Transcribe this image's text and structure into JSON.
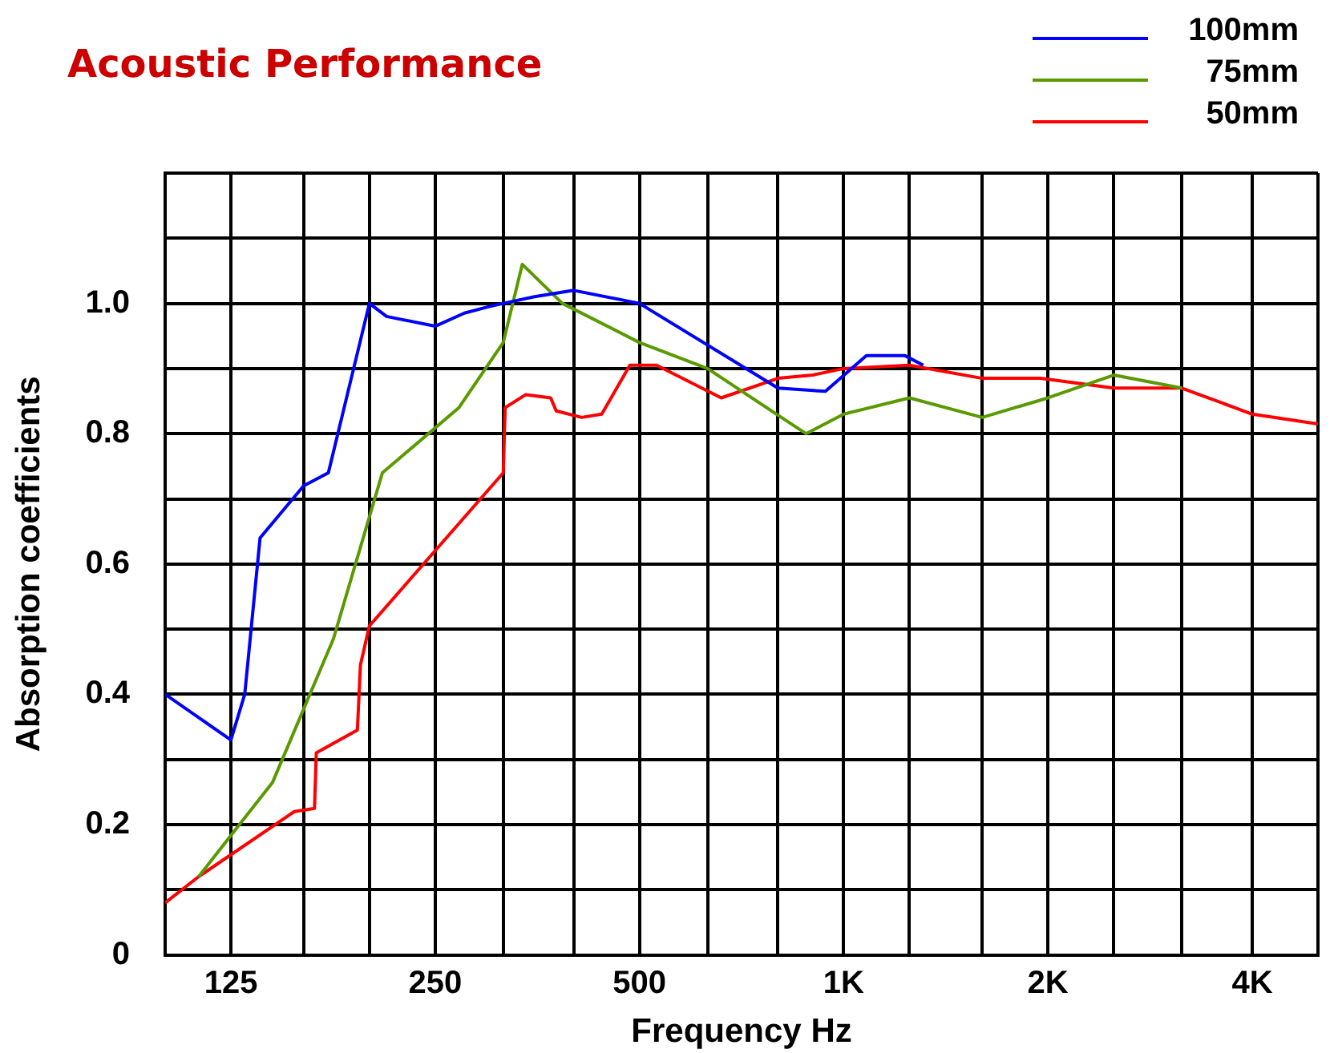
{
  "chart_data": {
    "type": "line",
    "title": "Acoustic Performance",
    "xlabel": "Frequency Hz",
    "ylabel": "Absorption coefficients",
    "log": "x",
    "grid": true,
    "legend": "top right",
    "marker": "none",
    "line_style": "solid",
    "xlim": [
      100,
      5000
    ],
    "xticks": [
      {
        "value": 100,
        "label": null
      },
      125,
      {
        "value": 160,
        "label": null
      },
      {
        "value": 200,
        "label": null
      },
      250,
      {
        "value": 315,
        "label": null
      },
      {
        "value": 400,
        "label": null
      },
      500,
      {
        "value": 630,
        "label": null
      },
      {
        "value": 800,
        "label": null
      },
      {
        "value": 1000,
        "label": "1K"
      },
      {
        "value": 1250,
        "label": null
      },
      {
        "value": 1600,
        "label": null
      },
      {
        "value": 2000,
        "label": "2K"
      },
      {
        "value": 2500,
        "label": null
      },
      {
        "value": 3150,
        "label": null
      },
      {
        "value": 4000,
        "label": "4K"
      },
      {
        "value": 5000,
        "label": null
      }
    ],
    "ylim": [
      0,
      1.2
    ],
    "yticks": [
      0,
      {
        "value": 0.1,
        "label": null
      },
      0.2,
      {
        "value": 0.3,
        "label": null
      },
      0.4,
      {
        "value": 0.5,
        "label": null
      },
      0.6,
      {
        "value": 0.7,
        "label": null
      },
      0.8,
      {
        "value": 0.9,
        "label": null
      },
      {
        "value": 1.0,
        "label": "1.0"
      },
      {
        "value": 1.1,
        "label": null
      },
      {
        "value": 1.2,
        "label": null
      }
    ],
    "series": [
      {
        "name": "100mm",
        "color": "#0000ff",
        "x": [
          100,
          125,
          131,
          138,
          160,
          174,
          200,
          212,
          250,
          276,
          300,
          315,
          349,
          400,
          500,
          800,
          940,
          1080,
          1230,
          1310
        ],
        "values": [
          0.4,
          0.33,
          0.4,
          0.64,
          0.72,
          0.74,
          1.0,
          0.98,
          0.965,
          0.985,
          0.995,
          1.0,
          1.01,
          1.02,
          1.0,
          0.87,
          0.865,
          0.92,
          0.92,
          0.905
        ]
      },
      {
        "name": "75mm",
        "color": "#5a9a00",
        "x": [
          112,
          144,
          177,
          209,
          271,
          315,
          336,
          385,
          500,
          630,
          880,
          1000,
          1250,
          1600,
          2000,
          2500,
          3150
        ],
        "values": [
          0.12,
          0.265,
          0.485,
          0.74,
          0.84,
          0.94,
          1.06,
          1.0,
          0.94,
          0.9,
          0.8,
          0.83,
          0.855,
          0.825,
          0.855,
          0.89,
          0.87
        ]
      },
      {
        "name": "50mm",
        "color": "#ff0000",
        "x": [
          100,
          112,
          155,
          166,
          167,
          192,
          194,
          200,
          315,
          317,
          340,
          370,
          377,
          411,
          440,
          484,
          530,
          660,
          800,
          900,
          1000,
          1250,
          1600,
          1950,
          2500,
          3150,
          4000,
          5000
        ],
        "values": [
          0.08,
          0.12,
          0.22,
          0.225,
          0.31,
          0.345,
          0.445,
          0.505,
          0.74,
          0.84,
          0.86,
          0.855,
          0.835,
          0.825,
          0.83,
          0.905,
          0.905,
          0.855,
          0.885,
          0.89,
          0.9,
          0.905,
          0.885,
          0.885,
          0.87,
          0.87,
          0.83,
          0.815
        ]
      }
    ]
  }
}
